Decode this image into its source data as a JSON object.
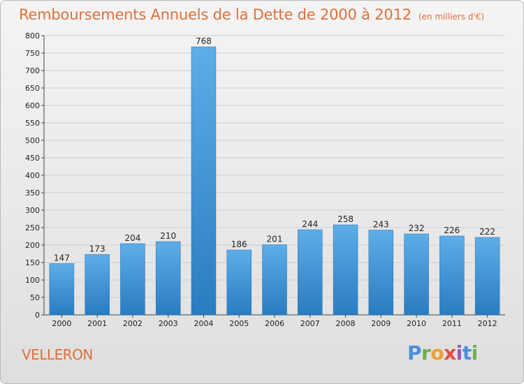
{
  "header": {
    "title": "Remboursements Annuels de la Dette de 2000 à 2012",
    "subtitle": "(en milliers d'€)"
  },
  "footer": {
    "city": "VELLERON",
    "logo_text": "Proxiti",
    "logo_letters": [
      {
        "ch": "P",
        "color": "#4a90d9"
      },
      {
        "ch": "r",
        "color": "#6ab04c"
      },
      {
        "ch": "o",
        "color": "#f0a030"
      },
      {
        "ch": "x",
        "color": "#e74c3c"
      },
      {
        "ch": "i",
        "color": "#9b59b6"
      },
      {
        "ch": "t",
        "color": "#4a90d9"
      },
      {
        "ch": "i",
        "color": "#6ab04c"
      }
    ]
  },
  "colors": {
    "bar_light": "#5dade8",
    "bar_dark": "#2a7cc1",
    "grid": "#cfcfcf",
    "title": "#e0703a"
  },
  "chart_data": {
    "type": "bar",
    "title": "Remboursements Annuels de la Dette de 2000 à 2012",
    "subtitle": "(en milliers d'€)",
    "xlabel": "",
    "ylabel": "",
    "categories": [
      "2000",
      "2001",
      "2002",
      "2003",
      "2004",
      "2005",
      "2006",
      "2007",
      "2008",
      "2009",
      "2010",
      "2011",
      "2012"
    ],
    "values": [
      147,
      173,
      204,
      210,
      768,
      186,
      201,
      244,
      258,
      243,
      232,
      226,
      222
    ],
    "ylim": [
      0,
      800
    ],
    "yticks": [
      0,
      50,
      100,
      150,
      200,
      250,
      300,
      350,
      400,
      450,
      500,
      550,
      600,
      650,
      700,
      750,
      800
    ],
    "grid": true,
    "legend": "none"
  }
}
